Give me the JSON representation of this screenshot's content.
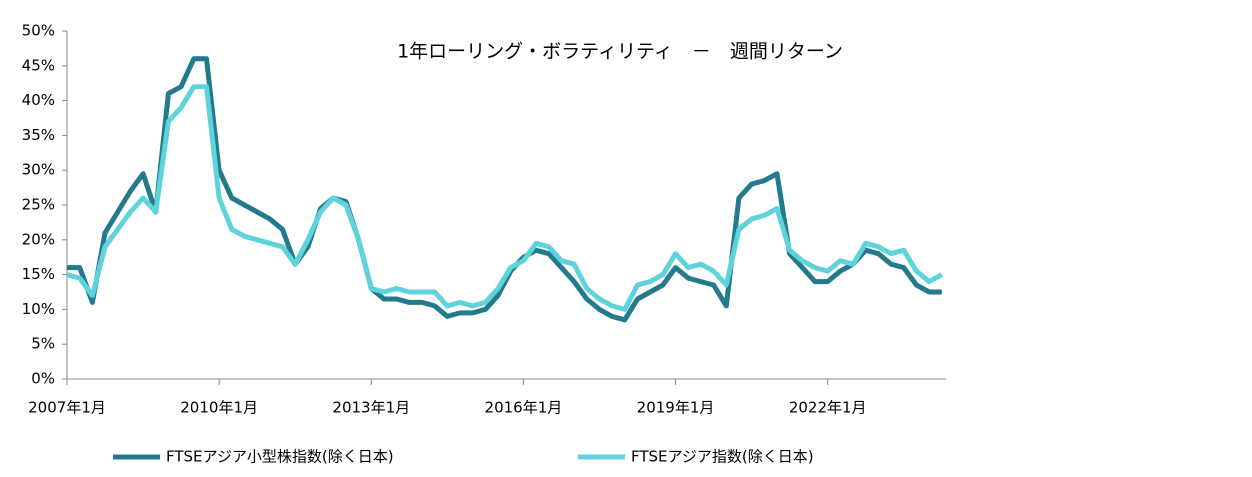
{
  "chart_data": {
    "type": "line",
    "title": "1年ローリング・ボラティリティ　－　週間リターン",
    "x": [
      "2007-01",
      "2007-04",
      "2007-07",
      "2007-10",
      "2008-01",
      "2008-04",
      "2008-07",
      "2008-10",
      "2009-01",
      "2009-04",
      "2009-07",
      "2009-10",
      "2010-01",
      "2010-04",
      "2010-07",
      "2010-10",
      "2011-01",
      "2011-04",
      "2011-07",
      "2011-10",
      "2012-01",
      "2012-04",
      "2012-07",
      "2012-10",
      "2013-01",
      "2013-04",
      "2013-07",
      "2013-10",
      "2014-01",
      "2014-04",
      "2014-07",
      "2014-10",
      "2015-01",
      "2015-04",
      "2015-07",
      "2015-10",
      "2016-01",
      "2016-04",
      "2016-07",
      "2016-10",
      "2017-01",
      "2017-04",
      "2017-07",
      "2017-10",
      "2018-01",
      "2018-04",
      "2018-07",
      "2018-10",
      "2019-01",
      "2019-04",
      "2019-07",
      "2019-10",
      "2020-01",
      "2020-04",
      "2020-07",
      "2020-10",
      "2021-01",
      "2021-04",
      "2021-07",
      "2021-10",
      "2022-01",
      "2022-04",
      "2022-07",
      "2022-10",
      "2023-01",
      "2023-04",
      "2023-07",
      "2023-10",
      "2024-01",
      "2024-04"
    ],
    "series": [
      {
        "name": "FTSEアジア小型株指数(除く日本)",
        "color": "#237a8c",
        "values": [
          16,
          16,
          11,
          21,
          24,
          27,
          29.5,
          24,
          41,
          42,
          46,
          46,
          30,
          26,
          25,
          24,
          23,
          21.5,
          16.5,
          19,
          24.5,
          26,
          25.5,
          20,
          13,
          11.5,
          11.5,
          11,
          11,
          10.5,
          9,
          9.5,
          9.5,
          10,
          12,
          15.5,
          17.5,
          18.5,
          18,
          16,
          14,
          11.5,
          10,
          9,
          8.5,
          11.5,
          12.5,
          13.5,
          16,
          14.5,
          14,
          13.5,
          10.5,
          26,
          28,
          28.5,
          29.5,
          18,
          16,
          14,
          14,
          15.5,
          16.5,
          18.5,
          18,
          16.5,
          16,
          13.5,
          12.5,
          12.5
        ]
      },
      {
        "name": "FTSEアジア指数(除く日本)",
        "color": "#5fd3dc",
        "values": [
          15,
          14.5,
          12,
          19,
          21.5,
          24,
          26,
          24,
          37,
          39,
          42,
          42,
          26,
          21.5,
          20.5,
          20,
          19.5,
          19,
          16.5,
          20,
          24,
          26,
          25,
          20,
          13,
          12.5,
          13,
          12.5,
          12.5,
          12.5,
          10.5,
          11,
          10.5,
          11,
          13,
          16,
          17,
          19.5,
          19,
          17,
          16.5,
          13,
          11.5,
          10.5,
          10,
          13.5,
          14,
          15,
          18,
          16,
          16.5,
          15.5,
          13.5,
          21.5,
          23,
          23.5,
          24.5,
          18.5,
          17,
          16,
          15.5,
          17,
          16.5,
          19.5,
          19,
          18,
          18.5,
          15.5,
          14,
          15
        ]
      }
    ],
    "xlim": [
      "2007-01",
      "2024-05"
    ],
    "xticks": [
      {
        "value": "2007-01",
        "label": "2007年1月"
      },
      {
        "value": "2010-01",
        "label": "2010年1月"
      },
      {
        "value": "2013-01",
        "label": "2013年1月"
      },
      {
        "value": "2016-01",
        "label": "2016年1月"
      },
      {
        "value": "2019-01",
        "label": "2019年1月"
      },
      {
        "value": "2022-01",
        "label": "2022年1月"
      }
    ],
    "ylim": [
      0,
      50
    ],
    "yticks": [
      {
        "value": 0,
        "label": "0%"
      },
      {
        "value": 5,
        "label": "5%"
      },
      {
        "value": 10,
        "label": "10%"
      },
      {
        "value": 15,
        "label": "15%"
      },
      {
        "value": 20,
        "label": "20%"
      },
      {
        "value": 25,
        "label": "25%"
      },
      {
        "value": 30,
        "label": "30%"
      },
      {
        "value": 35,
        "label": "35%"
      },
      {
        "value": 40,
        "label": "40%"
      },
      {
        "value": 45,
        "label": "45%"
      },
      {
        "value": 50,
        "label": "50%"
      }
    ],
    "grid": false,
    "legend": "bottom"
  }
}
